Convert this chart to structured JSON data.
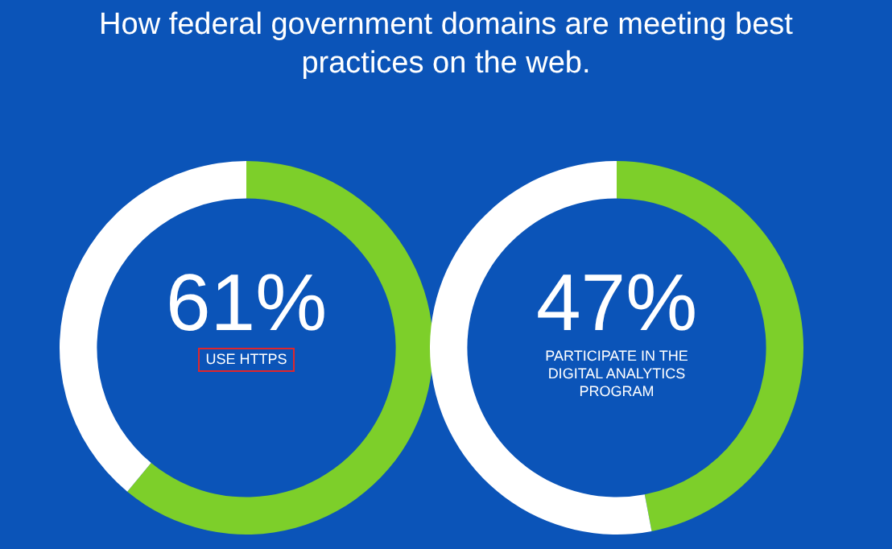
{
  "chart_data": [
    {
      "type": "donut",
      "title": "How federal government domains are meeting best practices on the web.",
      "categories": [
        null,
        null
      ],
      "values": [
        61,
        39
      ],
      "colors": [
        "#7dcf2a",
        "#ffffff"
      ],
      "value_labels": [
        "61%",
        null
      ],
      "annotations": [
        "USE HTTPS"
      ]
    },
    {
      "type": "donut",
      "categories": [
        null,
        null
      ],
      "values": [
        47,
        53
      ],
      "colors": [
        "#7dcf2a",
        "#ffffff"
      ],
      "value_labels": [
        "47%",
        null
      ],
      "annotations": [
        "PARTICIPATE IN THE DIGITAL ANALYTICS PROGRAM"
      ]
    }
  ]
}
